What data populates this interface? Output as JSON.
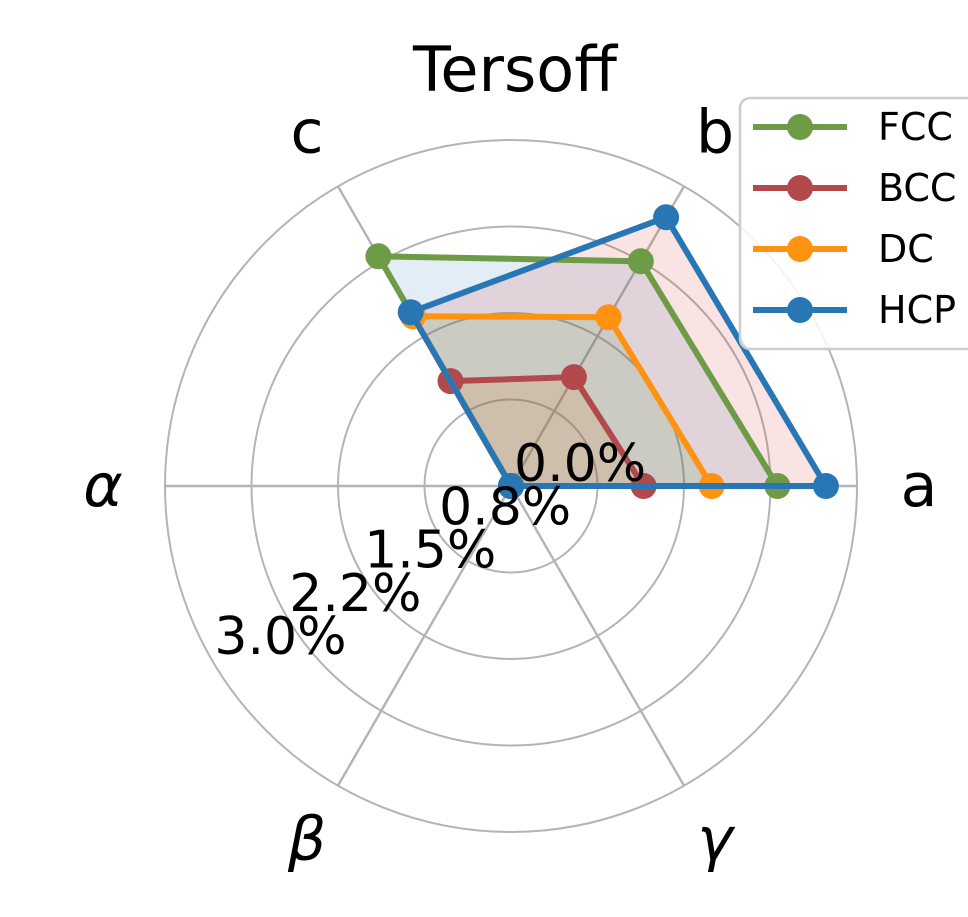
{
  "chart_data": {
    "type": "radar",
    "title": "Tersoff",
    "axes": [
      {
        "label": "a",
        "angle_deg": 0
      },
      {
        "label": "b",
        "angle_deg": 60
      },
      {
        "label": "c",
        "angle_deg": 120
      },
      {
        "label": "α",
        "angle_deg": 180
      },
      {
        "label": "β",
        "angle_deg": 240
      },
      {
        "label": "γ",
        "angle_deg": 300
      }
    ],
    "r_axis": {
      "max": 3.0,
      "tick_values": [
        0,
        0.75,
        1.5,
        2.25,
        3.0
      ],
      "tick_labels": [
        "0.0%",
        "0.8%",
        "1.5%",
        "2.2%",
        "3.0%"
      ],
      "tick_label_angle_deg": 210,
      "unit": "percent error"
    },
    "grid": {
      "on": true,
      "color": "#b4b4b4"
    },
    "fill_opacity": 0.13,
    "series": [
      {
        "name": "FCC",
        "line_color": "#6d9b46",
        "fill_color": "#1f77b4",
        "values": [
          2.31,
          2.25,
          2.3,
          0,
          0,
          0
        ]
      },
      {
        "name": "BCC",
        "line_color": "#b2494d",
        "fill_color": "#ff7f0e",
        "values": [
          1.15,
          1.09,
          1.05,
          0,
          0,
          0
        ]
      },
      {
        "name": "DC",
        "line_color": "#ff9210",
        "fill_color": "#2ca02c",
        "values": [
          1.74,
          1.69,
          1.7,
          0,
          0,
          0
        ]
      },
      {
        "name": "HCP",
        "line_color": "#2877b4",
        "fill_color": "#d62728",
        "values": [
          2.73,
          2.69,
          1.74,
          0,
          0,
          0
        ]
      }
    ],
    "legend": {
      "position": "upper-right",
      "entries": [
        "FCC",
        "BCC",
        "DC",
        "HCP"
      ],
      "border_color": "#cccccc",
      "background": "#ffffff"
    }
  }
}
